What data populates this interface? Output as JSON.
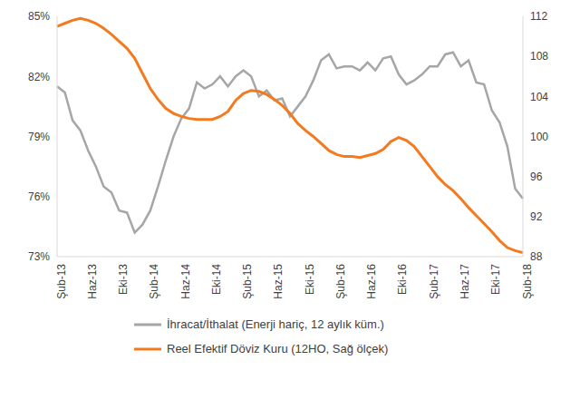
{
  "chart_data": {
    "type": "line",
    "categories": [
      "Şub-13",
      null,
      null,
      null,
      "Haz-13",
      null,
      null,
      null,
      "Eki-13",
      null,
      null,
      null,
      "Şub-14",
      null,
      null,
      null,
      "Haz-14",
      null,
      null,
      null,
      "Eki-14",
      null,
      null,
      null,
      "Şub-15",
      null,
      null,
      null,
      "Haz-15",
      null,
      null,
      null,
      "Eki-15",
      null,
      null,
      null,
      "Şub-16",
      null,
      null,
      null,
      "Haz-16",
      null,
      null,
      null,
      "Eki-16",
      null,
      null,
      null,
      "Şub-17",
      null,
      null,
      null,
      "Haz-17",
      null,
      null,
      null,
      "Eki-17",
      null,
      null,
      null,
      "Şub-18"
    ],
    "series": [
      {
        "name": "İhracat/İthalat (Enerji hariç, 12 aylık küm.)",
        "color": "#a6a6a6",
        "values": [
          81.5,
          81.2,
          79.8,
          79.3,
          78.3,
          77.5,
          76.5,
          76.2,
          75.3,
          75.2,
          74.2,
          74.6,
          75.3,
          76.5,
          77.8,
          79.0,
          79.9,
          80.4,
          81.7,
          81.4,
          81.6,
          82.0,
          81.5,
          82.0,
          82.3,
          82.0,
          81.0,
          81.3,
          80.8,
          80.9,
          80.0,
          80.5,
          81.0,
          81.8,
          82.8,
          83.1,
          82.4,
          82.5,
          82.5,
          82.3,
          82.7,
          82.3,
          82.9,
          83.0,
          82.1,
          81.6,
          81.8,
          82.1,
          82.5,
          82.5,
          83.1,
          83.2,
          82.5,
          82.8,
          81.7,
          81.6,
          80.3,
          79.7,
          78.5,
          76.4,
          75.9
        ]
      },
      {
        "name": "Reel Efektif Döviz Kuru  (12HO, Sağ ölçek)",
        "color": "#f47a1f",
        "axis": "y2",
        "values": [
          111,
          111.3,
          111.6,
          111.8,
          111.6,
          111.3,
          110.8,
          110.2,
          109.5,
          108.8,
          107.8,
          106.3,
          104.8,
          103.7,
          102.8,
          102.3,
          102.0,
          101.8,
          101.7,
          101.7,
          101.7,
          102.0,
          102.5,
          103.6,
          104.3,
          104.6,
          104.5,
          104.2,
          103.7,
          103.1,
          102.3,
          101.3,
          100.6,
          100.0,
          99.3,
          98.6,
          98.2,
          98.0,
          98.0,
          97.9,
          98.1,
          98.3,
          98.7,
          99.5,
          99.9,
          99.6,
          99.0,
          98.0,
          97.0,
          96.0,
          95.2,
          94.6,
          93.8,
          92.9,
          92.1,
          91.3,
          90.5,
          89.6,
          88.9,
          88.6,
          88.4
        ]
      }
    ],
    "ylim": [
      73,
      85
    ],
    "yticks": [
      {
        "value": 73,
        "label": "73%"
      },
      {
        "value": 76,
        "label": "76%"
      },
      {
        "value": 79,
        "label": "79%"
      },
      {
        "value": 82,
        "label": "82%"
      },
      {
        "value": 85,
        "label": "85%"
      }
    ],
    "y2lim": [
      88,
      112
    ],
    "y2ticks": [
      88,
      92,
      96,
      100,
      104,
      108,
      112
    ],
    "grid": false
  }
}
